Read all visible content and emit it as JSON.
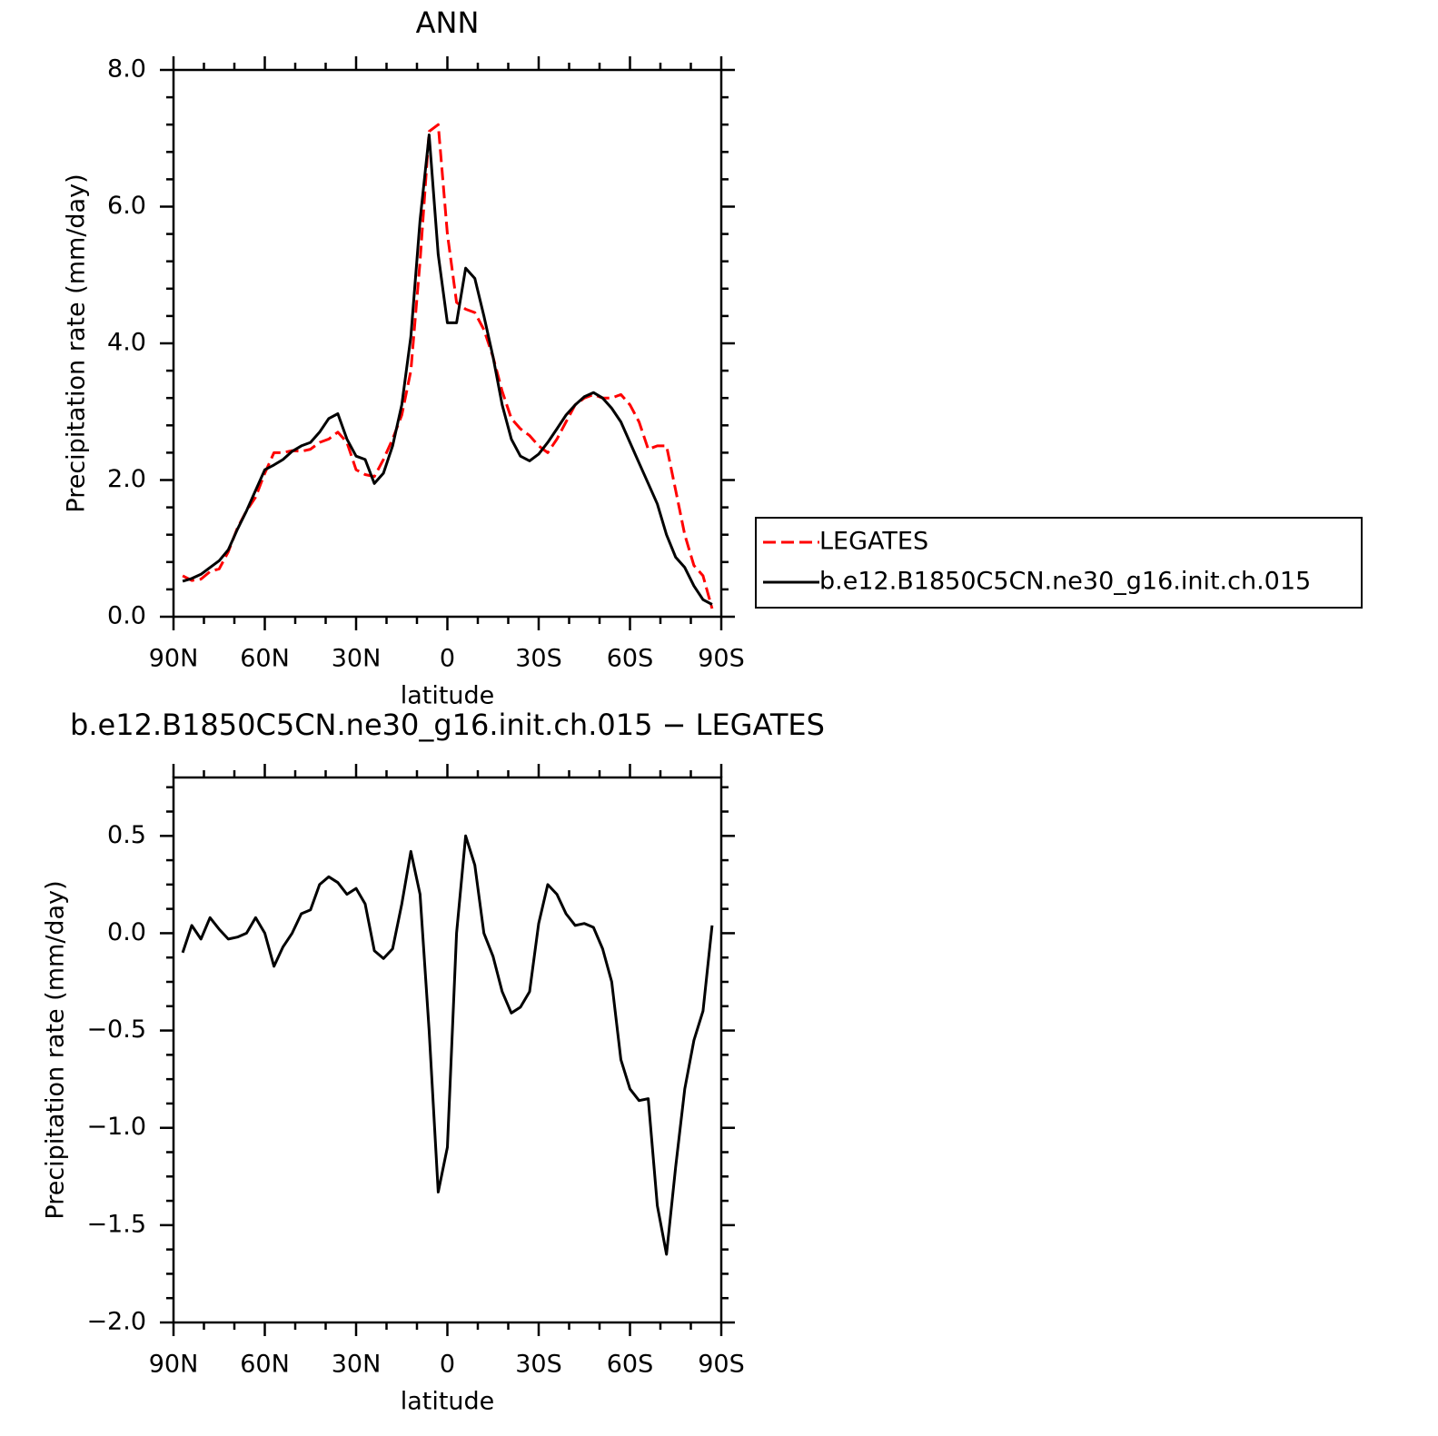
{
  "chart_data": [
    {
      "type": "line",
      "title": "ANN",
      "xlabel": "latitude",
      "ylabel": "Precipitation rate (mm/day)",
      "x": [
        87,
        84,
        81,
        78,
        75,
        72,
        69,
        66,
        63,
        60,
        57,
        54,
        51,
        48,
        45,
        42,
        39,
        36,
        33,
        30,
        27,
        24,
        21,
        18,
        15,
        12,
        9,
        6,
        3,
        0,
        -3,
        -6,
        -9,
        -12,
        -15,
        -18,
        -21,
        -24,
        -27,
        -30,
        -33,
        -36,
        -39,
        -42,
        -45,
        -48,
        -51,
        -54,
        -57,
        -60,
        -63,
        -66,
        -69,
        -72,
        -75,
        -78,
        -81,
        -84,
        -87
      ],
      "series": [
        {
          "name": "LEGATES",
          "color": "#ff0000",
          "line_style": "dashed",
          "values": [
            0.6,
            0.53,
            0.55,
            0.66,
            0.7,
            0.95,
            1.3,
            1.55,
            1.75,
            2.1,
            2.4,
            2.4,
            2.43,
            2.42,
            2.45,
            2.55,
            2.6,
            2.7,
            2.55,
            2.15,
            2.08,
            2.05,
            2.3,
            2.6,
            2.95,
            3.6,
            5.2,
            7.1,
            7.2,
            5.6,
            4.6,
            4.5,
            4.45,
            4.2,
            3.8,
            3.3,
            2.9,
            2.75,
            2.65,
            2.5,
            2.4,
            2.6,
            2.85,
            3.1,
            3.2,
            3.25,
            3.2,
            3.2,
            3.25,
            3.1,
            2.85,
            2.45,
            2.5,
            2.5,
            1.85,
            1.2,
            0.75,
            0.6,
            0.12
          ]
        },
        {
          "name": "b.e12.B1850C5CN.ne30_g16.init.ch.015",
          "color": "#000000",
          "line_style": "solid",
          "values": [
            0.52,
            0.56,
            0.62,
            0.72,
            0.82,
            0.98,
            1.28,
            1.55,
            1.85,
            2.15,
            2.22,
            2.3,
            2.42,
            2.5,
            2.55,
            2.7,
            2.9,
            2.97,
            2.6,
            2.35,
            2.3,
            1.95,
            2.1,
            2.5,
            3.1,
            4.1,
            5.8,
            7.05,
            5.3,
            4.3,
            4.3,
            5.1,
            4.95,
            4.4,
            3.8,
            3.1,
            2.6,
            2.35,
            2.28,
            2.38,
            2.55,
            2.75,
            2.95,
            3.1,
            3.22,
            3.28,
            3.2,
            3.05,
            2.85,
            2.55,
            2.25,
            1.95,
            1.65,
            1.2,
            0.87,
            0.72,
            0.45,
            0.25,
            0.18
          ]
        }
      ],
      "xlim": [
        90,
        -90
      ],
      "xticks": [
        {
          "value": 90,
          "label": "90N"
        },
        {
          "value": 60,
          "label": "60N"
        },
        {
          "value": 30,
          "label": "30N"
        },
        0,
        {
          "value": -30,
          "label": "30S"
        },
        {
          "value": -60,
          "label": "60S"
        },
        {
          "value": -90,
          "label": "90S"
        }
      ],
      "xminorticks": [
        80,
        70,
        50,
        40,
        20,
        10,
        -10,
        -20,
        -40,
        -50,
        -70,
        -80
      ],
      "ylim": [
        0,
        8
      ],
      "yticks": [
        {
          "value": 0,
          "label": "0.0"
        },
        {
          "value": 2,
          "label": "2.0"
        },
        {
          "value": 4,
          "label": "4.0"
        },
        {
          "value": 6,
          "label": "6.0"
        },
        {
          "value": 8,
          "label": "8.0"
        }
      ],
      "yminorticks": [
        0.4,
        0.8,
        1.2,
        1.6,
        2.4,
        2.8,
        3.2,
        3.6,
        4.4,
        4.8,
        5.2,
        5.6,
        6.4,
        6.8,
        7.2,
        7.6
      ],
      "legend": "right"
    },
    {
      "type": "line",
      "title": "b.e12.B1850C5CN.ne30_g16.init.ch.015 − LEGATES",
      "xlabel": "latitude",
      "ylabel": "Precipitation rate (mm/day)",
      "x": [
        87,
        84,
        81,
        78,
        75,
        72,
        69,
        66,
        63,
        60,
        57,
        54,
        51,
        48,
        45,
        42,
        39,
        36,
        33,
        30,
        27,
        24,
        21,
        18,
        15,
        12,
        9,
        6,
        3,
        0,
        -3,
        -6,
        -9,
        -12,
        -15,
        -18,
        -21,
        -24,
        -27,
        -30,
        -33,
        -36,
        -39,
        -42,
        -45,
        -48,
        -51,
        -54,
        -57,
        -60,
        -63,
        -66,
        -69,
        -72,
        -75,
        -78,
        -81,
        -84,
        -87
      ],
      "series": [
        {
          "color": "#000000",
          "line_style": "solid",
          "values": [
            -0.1,
            0.04,
            -0.03,
            0.08,
            0.02,
            -0.03,
            -0.02,
            0.0,
            0.08,
            0.0,
            -0.17,
            -0.07,
            0.0,
            0.1,
            0.12,
            0.25,
            0.29,
            0.26,
            0.2,
            0.23,
            0.15,
            -0.09,
            -0.13,
            -0.08,
            0.15,
            0.42,
            0.2,
            -0.5,
            -1.33,
            -1.1,
            0.0,
            0.5,
            0.35,
            0.0,
            -0.12,
            -0.3,
            -0.41,
            -0.38,
            -0.3,
            0.05,
            0.25,
            0.2,
            0.1,
            0.04,
            0.05,
            0.03,
            -0.08,
            -0.25,
            -0.65,
            -0.8,
            -0.86,
            -0.85,
            -1.4,
            -1.65,
            -1.2,
            -0.8,
            -0.55,
            -0.4,
            0.04
          ]
        }
      ],
      "xlim": [
        90,
        -90
      ],
      "xticks": [
        {
          "value": 90,
          "label": "90N"
        },
        {
          "value": 60,
          "label": "60N"
        },
        {
          "value": 30,
          "label": "30N"
        },
        0,
        {
          "value": -30,
          "label": "30S"
        },
        {
          "value": -60,
          "label": "60S"
        },
        {
          "value": -90,
          "label": "90S"
        }
      ],
      "xminorticks": [
        80,
        70,
        50,
        40,
        20,
        10,
        -10,
        -20,
        -40,
        -50,
        -70,
        -80
      ],
      "ylim": [
        -2,
        0.8
      ],
      "yticks": [
        {
          "value": -2,
          "label": "−2.0"
        },
        {
          "value": -1.5,
          "label": "−1.5"
        },
        {
          "value": -1,
          "label": "−1.0"
        },
        {
          "value": -0.5,
          "label": "−0.5"
        },
        {
          "value": 0,
          "label": "0.0"
        },
        0.5
      ],
      "yminorticks": [
        -1.875,
        -1.75,
        -1.625,
        -1.375,
        -1.25,
        -1.125,
        -0.875,
        -0.75,
        -0.625,
        -0.375,
        -0.25,
        -0.125,
        0.125,
        0.25,
        0.375,
        0.625,
        0.75
      ]
    }
  ]
}
